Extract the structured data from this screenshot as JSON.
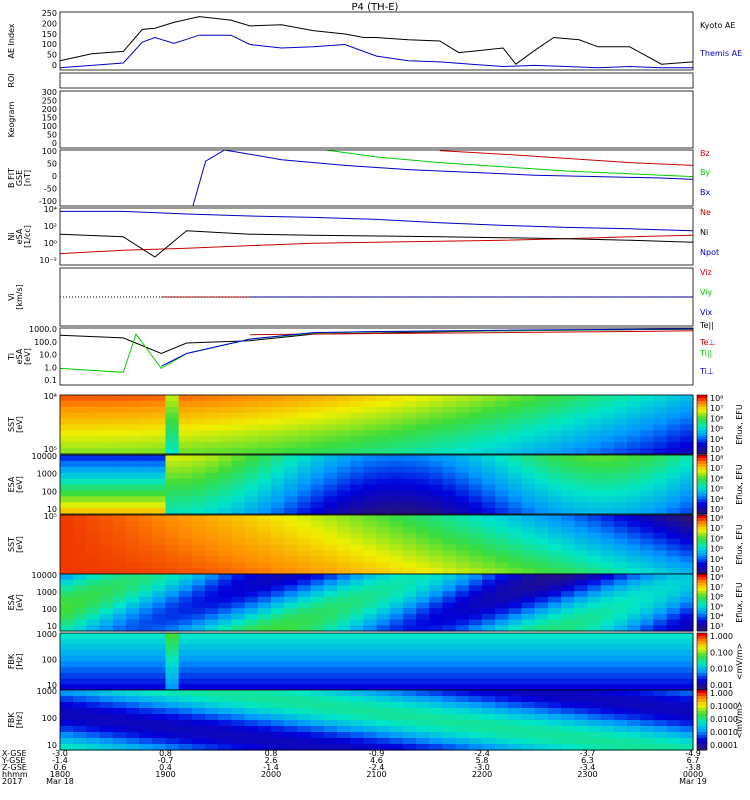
{
  "title": "P4 (TH-E)",
  "chart_data": [
    {
      "type": "line",
      "ylabel": [
        "AE Index"
      ],
      "ylim": [
        0,
        250
      ],
      "yticks": [
        "250",
        "200",
        "150",
        "100",
        "50",
        "0"
      ],
      "series": [
        {
          "name": "Kyoto AE",
          "color": "#000000",
          "x": [
            0,
            0.05,
            0.1,
            0.13,
            0.15,
            0.18,
            0.22,
            0.27,
            0.3,
            0.35,
            0.4,
            0.45,
            0.48,
            0.5,
            0.55,
            0.6,
            0.63,
            0.65,
            0.7,
            0.72,
            0.75,
            0.78,
            0.82,
            0.85,
            0.9,
            0.95,
            1.0
          ],
          "y": [
            40,
            70,
            80,
            175,
            180,
            205,
            230,
            215,
            190,
            195,
            170,
            155,
            140,
            140,
            130,
            125,
            75,
            80,
            95,
            25,
            85,
            140,
            130,
            100,
            100,
            25,
            35
          ]
        },
        {
          "name": "Themis AE",
          "color": "#0000cc",
          "x": [
            0,
            0.05,
            0.1,
            0.13,
            0.15,
            0.18,
            0.22,
            0.27,
            0.3,
            0.35,
            0.4,
            0.45,
            0.5,
            0.55,
            0.6,
            0.65,
            0.7,
            0.75,
            0.8,
            0.85,
            0.9,
            0.95,
            1.0
          ],
          "y": [
            10,
            20,
            30,
            120,
            140,
            115,
            150,
            150,
            110,
            95,
            100,
            110,
            60,
            40,
            35,
            25,
            15,
            20,
            15,
            10,
            15,
            10,
            10
          ]
        }
      ]
    },
    {
      "type": "line",
      "ylabel": [
        "ROI"
      ],
      "series": []
    },
    {
      "type": "line",
      "ylabel": [
        "Keogram"
      ],
      "ylim": [
        0,
        300
      ],
      "yticks": [
        "300",
        "250",
        "200",
        "150",
        "100",
        "50",
        "0"
      ],
      "series": []
    },
    {
      "type": "line",
      "ylabel": [
        "B FIT",
        "GSE",
        "[nT]"
      ],
      "ylim": [
        -100,
        100
      ],
      "yticks": [
        "100",
        "50",
        "0",
        "-50",
        "-100"
      ],
      "series": [
        {
          "name": "Bz",
          "color": "#cc0000",
          "x": [
            0.6,
            0.7,
            0.8,
            0.9,
            1.0
          ],
          "y": [
            98,
            85,
            70,
            55,
            45
          ]
        },
        {
          "name": "By",
          "color": "#00cc00",
          "x": [
            0.42,
            0.5,
            0.6,
            0.7,
            0.8,
            0.9,
            1.0
          ],
          "y": [
            100,
            75,
            55,
            40,
            25,
            15,
            5
          ]
        },
        {
          "name": "Bx",
          "color": "#0000cc",
          "x": [
            0.21,
            0.23,
            0.26,
            0.3,
            0.35,
            0.45,
            0.55,
            0.65,
            0.75,
            0.85,
            0.95,
            1.0
          ],
          "y": [
            -100,
            60,
            100,
            85,
            65,
            45,
            30,
            20,
            10,
            5,
            0,
            -5
          ]
        }
      ]
    },
    {
      "type": "line",
      "ylabel": [
        "Ni",
        "eSA",
        "[1/cc]"
      ],
      "yscale": "log",
      "ylim": [
        0.001,
        100
      ],
      "yticks": [
        "10⁴",
        "10²",
        "10⁰",
        "10⁻²"
      ],
      "series": [
        {
          "name": "Ne",
          "color": "#cc0000",
          "x": [
            0,
            0.1,
            0.2,
            0.3,
            0.4,
            0.5,
            0.6,
            0.7,
            0.8,
            0.9,
            1.0
          ],
          "y": [
            0.01,
            0.02,
            0.03,
            0.05,
            0.08,
            0.1,
            0.12,
            0.15,
            0.2,
            0.3,
            0.4
          ]
        },
        {
          "name": "Ni",
          "color": "#000000",
          "x": [
            0,
            0.1,
            0.15,
            0.2,
            0.3,
            0.4,
            0.5,
            0.6,
            0.7,
            0.8,
            0.9,
            1.0
          ],
          "y": [
            0.5,
            0.3,
            0.005,
            1,
            0.5,
            0.4,
            0.35,
            0.3,
            0.25,
            0.2,
            0.15,
            0.1
          ]
        },
        {
          "name": "Npot",
          "color": "#0000cc",
          "x": [
            0,
            0.1,
            0.2,
            0.3,
            0.4,
            0.5,
            0.6,
            0.7,
            0.8,
            0.9,
            1.0
          ],
          "y": [
            50,
            50,
            30,
            20,
            15,
            10,
            5,
            3,
            2,
            1.5,
            1
          ]
        }
      ]
    },
    {
      "type": "line",
      "ylabel": [
        "Vi",
        "[km/s]"
      ],
      "ylim": [
        -500,
        500
      ],
      "series": [
        {
          "name": "Viz",
          "color": "#cc0000",
          "x": [
            0.16,
            1.0
          ],
          "y": [
            0,
            0
          ]
        },
        {
          "name": "Viy",
          "color": "#00cc00",
          "x": [
            0.3,
            1.0
          ],
          "y": [
            0,
            0
          ]
        },
        {
          "name": "Vix",
          "color": "#0000cc",
          "x": [
            0.3,
            1.0
          ],
          "y": [
            0,
            0
          ]
        }
      ]
    },
    {
      "type": "line",
      "ylabel": [
        "Ti",
        "eSA",
        "[eV]"
      ],
      "yscale": "log",
      "ylim": [
        0.1,
        3000
      ],
      "yticks": [
        "1000.0",
        "100.0",
        "10.0",
        "1.0",
        "0.1"
      ],
      "series": [
        {
          "name": "Te||",
          "color": "#000000",
          "x": [
            0,
            0.1,
            0.16,
            0.2,
            0.3,
            0.4,
            0.5,
            0.6,
            0.7,
            0.8,
            0.9,
            1.0
          ],
          "y": [
            800,
            500,
            30,
            200,
            300,
            1000,
            1200,
            1500,
            1800,
            2000,
            2200,
            2400
          ]
        },
        {
          "name": "Te⊥",
          "color": "#cc0000",
          "x": [
            0.3,
            0.5,
            0.7,
            0.9,
            1.0
          ],
          "y": [
            900,
            1100,
            1300,
            1600,
            1800
          ]
        },
        {
          "name": "Ti||",
          "color": "#00cc00",
          "x": [
            0,
            0.1,
            0.12,
            0.16,
            0.2,
            0.3,
            0.4,
            0.5,
            0.7,
            1.0
          ],
          "y": [
            2,
            1,
            1000,
            2,
            30,
            400,
            1200,
            1500,
            1800,
            2500
          ]
        },
        {
          "name": "Ti⊥",
          "color": "#0000cc",
          "x": [
            0.16,
            0.2,
            0.3,
            0.4,
            0.5,
            0.7,
            1.0
          ],
          "y": [
            3,
            30,
            400,
            1300,
            1600,
            2000,
            2600
          ]
        }
      ]
    },
    {
      "type": "heatmap",
      "ylabel": [
        "SST",
        "[eV]"
      ],
      "yticks": [
        "10⁴",
        "10⁵"
      ],
      "colorbar_label": "Eflux, EFU",
      "colorbar_ticks": [
        "10⁸",
        "10⁷",
        "10⁶",
        "10⁵",
        "10⁴",
        "10³"
      ]
    },
    {
      "type": "heatmap",
      "ylabel": [
        "ESA",
        "[eV]"
      ],
      "yticks": [
        "10000",
        "1000",
        "100",
        "10"
      ],
      "colorbar_label": "Eflux, EFU",
      "colorbar_ticks": [
        "10⁸",
        "10⁷",
        "10⁶",
        "10⁵",
        "10⁴",
        "10³"
      ]
    },
    {
      "type": "heatmap",
      "ylabel": [
        "SST",
        "[eV]"
      ],
      "yticks": [
        "10⁵"
      ],
      "colorbar_label": "Eflux, EFU",
      "colorbar_ticks": [
        "10⁸",
        "10⁷",
        "10⁶",
        "10⁵",
        "10⁴",
        "10³"
      ]
    },
    {
      "type": "heatmap",
      "ylabel": [
        "ESA",
        "[eV]"
      ],
      "yticks": [
        "10000",
        "1000",
        "100",
        "10"
      ],
      "colorbar_label": "Eflux, EFU",
      "colorbar_ticks": [
        "10⁸",
        "10⁷",
        "10⁶",
        "10⁵",
        "10⁴",
        "10³"
      ]
    },
    {
      "type": "heatmap",
      "ylabel": [
        "FBK",
        "[Hz]"
      ],
      "yticks": [
        "1000",
        "100",
        "10"
      ],
      "colorbar_label": "<mV/m>",
      "colorbar_ticks": [
        "1.000",
        "0.100",
        "0.010",
        "0.001"
      ]
    },
    {
      "type": "heatmap",
      "ylabel": [
        "FBK",
        "[Hz]"
      ],
      "yticks": [
        "1000",
        "100",
        "10"
      ],
      "colorbar_label": "<mV/m>",
      "colorbar_ticks": [
        "1.000",
        "0.1000",
        "0.0100",
        "0.0010",
        "0.0001"
      ]
    }
  ],
  "x_axis": {
    "row_labels": [
      "X-GSE",
      "Y-GSE",
      "Z-GSE",
      "hhmm",
      "2017"
    ],
    "columns": [
      {
        "values": [
          "-3.0",
          "-1.4",
          "0.6",
          "1800",
          "Mar 18"
        ]
      },
      {
        "values": [
          "0.8",
          "-0.7",
          "0.4",
          "1900",
          ""
        ]
      },
      {
        "values": [
          "0.8",
          "2.6",
          "-1.4",
          "2000",
          ""
        ]
      },
      {
        "values": [
          "-0.9",
          "4.6",
          "-2.4",
          "2100",
          ""
        ]
      },
      {
        "values": [
          "-2.4",
          "5.8",
          "-3.0",
          "2200",
          ""
        ]
      },
      {
        "values": [
          "-3.7",
          "6.3",
          "-3.4",
          "2300",
          ""
        ]
      },
      {
        "values": [
          "-4.9",
          "6.7",
          "-3.8",
          "0000",
          "Mar 19"
        ]
      }
    ]
  }
}
